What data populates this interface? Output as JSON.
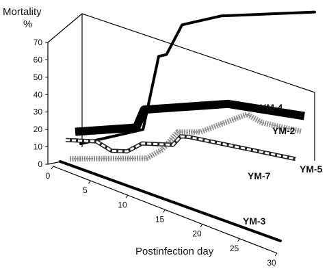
{
  "chart_data": {
    "type": "line",
    "subtype": "3d-ribbon",
    "title": "",
    "ylabel_line1": "Mortality",
    "ylabel_line2": "%",
    "xlabel": "Postinfection day",
    "x_ticks": [
      "0",
      "5",
      "10",
      "15",
      "20",
      "25",
      "30"
    ],
    "x_tick_values": [
      0,
      5,
      10,
      15,
      20,
      25,
      30
    ],
    "y_ticks": [
      "0",
      "10",
      "20",
      "30",
      "40",
      "50",
      "60",
      "70"
    ],
    "y_tick_values": [
      0,
      10,
      20,
      30,
      40,
      50,
      60,
      70
    ],
    "xlim": [
      0,
      30
    ],
    "ylim": [
      0,
      70
    ],
    "grid": false,
    "legend": "none",
    "series": [
      {
        "name": "YM-4",
        "color": "#000000",
        "style": "thick-line",
        "x": [
          0,
          4,
          6,
          8,
          9,
          10,
          11,
          13,
          14,
          15,
          17,
          18,
          30
        ],
        "y": [
          0,
          0,
          0,
          0,
          20,
          40,
          40,
          55,
          55,
          55,
          55,
          55,
          45
        ]
      },
      {
        "name": "YM-2",
        "color": "#000000",
        "style": "thick-band",
        "x": [
          0,
          4,
          6,
          8,
          9,
          10,
          11,
          13,
          15,
          17,
          20,
          30
        ],
        "y": [
          10,
          10,
          10,
          10,
          20,
          20,
          20,
          20,
          20,
          20,
          20,
          10
        ]
      },
      {
        "name": "YM-5",
        "color": "#999999",
        "style": "dotted-band",
        "x": [
          0,
          6,
          8,
          10,
          12,
          14,
          17,
          20,
          23,
          25,
          30
        ],
        "y": [
          0,
          0,
          0,
          0,
          5,
          15,
          15,
          20,
          25,
          20,
          15
        ]
      },
      {
        "name": "YM-7",
        "color": "#888888",
        "style": "dashed-double-line",
        "x": [
          0,
          4,
          6,
          8,
          10,
          11,
          12,
          13,
          14,
          15,
          16,
          30
        ],
        "y": [
          10,
          10,
          5,
          5,
          10,
          10,
          10,
          10,
          10,
          15,
          15,
          5
        ]
      },
      {
        "name": "YM-3",
        "color": "#000000",
        "style": "thick-line",
        "x": [
          0,
          30
        ],
        "y": [
          0,
          0
        ]
      }
    ]
  }
}
